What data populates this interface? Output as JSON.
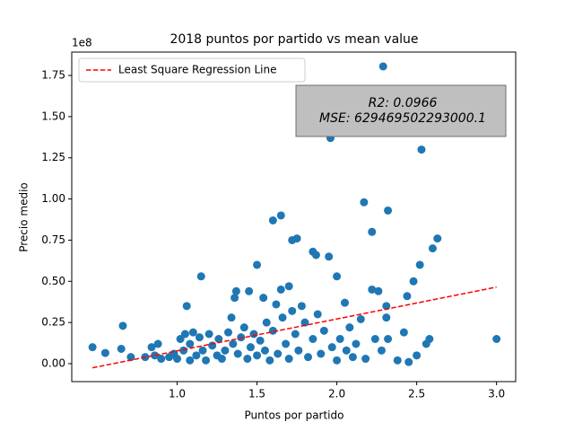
{
  "chart_data": {
    "type": "scatter",
    "title": "2018 puntos por partido vs mean value",
    "xlabel": "Puntos por partido",
    "ylabel": "Precio medio",
    "y_offset_label": "1e8",
    "annotations": [
      "R2: 0.0966",
      "MSE: 629469502293000.1"
    ],
    "legend": "upper left",
    "xlim": [
      0.34,
      3.12
    ],
    "ylim": [
      -0.109,
      1.892
    ],
    "xticks": [
      {
        "value": 1.0,
        "label": "1.0"
      },
      {
        "value": 1.5,
        "label": "1.5"
      },
      {
        "value": 2.0,
        "label": "2.0"
      },
      {
        "value": 2.5,
        "label": "2.5"
      },
      {
        "value": 3.0,
        "label": "3.0"
      }
    ],
    "yticks": [
      {
        "value": 0,
        "label": "0.00"
      },
      {
        "value": 0.25,
        "label": "0.25"
      },
      {
        "value": 0.5,
        "label": "0.50"
      },
      {
        "value": 0.75,
        "label": "0.75"
      },
      {
        "value": 1.0,
        "label": "1.00"
      },
      {
        "value": 1.25,
        "label": "1.25"
      },
      {
        "value": 1.5,
        "label": "1.50"
      },
      {
        "value": 1.75,
        "label": "1.75"
      }
    ],
    "series": [
      {
        "color": "#1f77b4",
        "type": "scatter",
        "x": [
          0.47,
          0.55,
          0.65,
          0.66,
          0.71,
          0.8,
          0.84,
          0.86,
          0.88,
          0.9,
          0.95,
          0.98,
          1.0,
          1.02,
          1.04,
          1.05,
          1.06,
          1.08,
          1.08,
          1.1,
          1.12,
          1.14,
          1.15,
          1.16,
          1.18,
          1.2,
          1.22,
          1.25,
          1.26,
          1.28,
          1.3,
          1.32,
          1.34,
          1.35,
          1.36,
          1.37,
          1.38,
          1.4,
          1.42,
          1.44,
          1.45,
          1.46,
          1.48,
          1.5,
          1.5,
          1.52,
          1.54,
          1.55,
          1.56,
          1.58,
          1.6,
          1.6,
          1.62,
          1.63,
          1.65,
          1.65,
          1.66,
          1.68,
          1.7,
          1.7,
          1.72,
          1.72,
          1.74,
          1.75,
          1.76,
          1.78,
          1.8,
          1.82,
          1.85,
          1.85,
          1.87,
          1.88,
          1.9,
          1.92,
          1.95,
          1.96,
          1.97,
          2.0,
          2.0,
          2.0,
          2.02,
          2.05,
          2.06,
          2.08,
          2.1,
          2.12,
          2.15,
          2.17,
          2.18,
          2.22,
          2.22,
          2.24,
          2.26,
          2.28,
          2.29,
          2.31,
          2.31,
          2.32,
          2.32,
          2.38,
          2.42,
          2.44,
          2.45,
          2.48,
          2.5,
          2.52,
          2.53,
          2.56,
          2.58,
          2.6,
          2.63,
          3.0
        ],
        "values": [
          0.1,
          0.065,
          0.09,
          0.23,
          0.04,
          0.04,
          0.1,
          0.05,
          0.12,
          0.03,
          0.04,
          0.06,
          0.03,
          0.15,
          0.08,
          0.18,
          0.35,
          0.12,
          0.02,
          0.19,
          0.05,
          0.16,
          0.53,
          0.08,
          0.02,
          0.18,
          0.11,
          0.05,
          0.15,
          0.03,
          0.08,
          0.19,
          0.28,
          0.12,
          0.4,
          0.44,
          0.06,
          0.16,
          0.22,
          0.03,
          0.44,
          0.1,
          0.18,
          0.6,
          0.05,
          0.14,
          0.4,
          0.08,
          0.25,
          0.02,
          0.87,
          0.2,
          0.36,
          0.06,
          0.9,
          0.45,
          0.28,
          0.12,
          0.47,
          0.03,
          0.75,
          0.32,
          0.18,
          0.76,
          0.08,
          0.35,
          0.25,
          0.04,
          0.68,
          0.15,
          0.66,
          0.3,
          0.06,
          0.2,
          0.65,
          1.37,
          0.1,
          1.43,
          0.53,
          0.02,
          0.15,
          0.37,
          0.08,
          0.22,
          0.04,
          0.12,
          0.27,
          0.98,
          0.03,
          0.8,
          0.45,
          0.15,
          0.44,
          0.08,
          1.805,
          0.35,
          0.28,
          0.93,
          0.15,
          0.02,
          0.19,
          0.41,
          0.01,
          0.5,
          0.05,
          0.6,
          1.3,
          0.12,
          0.15,
          0.7,
          0.76,
          0.15
        ]
      },
      {
        "name": "Least Square Regression Line",
        "color": "#ff0000",
        "type": "line",
        "x": [
          0.47,
          3.0
        ],
        "values": [
          -0.025,
          0.465
        ]
      }
    ]
  }
}
